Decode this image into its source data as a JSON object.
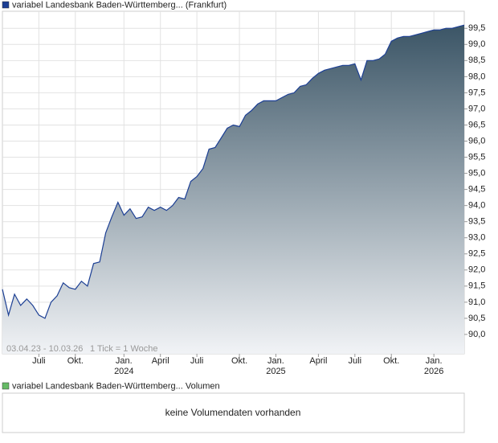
{
  "chart_data": {
    "type": "line",
    "title": "variabel Landesbank Baden-Württemberg... (Frankfurt)",
    "date_range": "03.04.23 - 10.03.26",
    "tick_note": "1 Tick = 1 Woche",
    "categories": [
      null,
      null,
      null,
      null,
      null,
      null,
      "Juli",
      null,
      null,
      null,
      null,
      null,
      "Okt.",
      null,
      null,
      null,
      null,
      null,
      null,
      null,
      "Jan.",
      null,
      null,
      null,
      null,
      null,
      "April",
      null,
      null,
      null,
      null,
      null,
      "Juli",
      null,
      null,
      null,
      null,
      null,
      null,
      "Okt.",
      null,
      null,
      null,
      null,
      null,
      "Jan.",
      null,
      null,
      null,
      null,
      null,
      null,
      "April",
      null,
      null,
      null,
      null,
      null,
      "Juli",
      null,
      null,
      null,
      null,
      null,
      "Okt.",
      null,
      null,
      null,
      null,
      null,
      null,
      "Jan.",
      null,
      null,
      null,
      null,
      null
    ],
    "category_years": [
      null,
      null,
      null,
      null,
      null,
      null,
      null,
      null,
      null,
      null,
      null,
      null,
      null,
      null,
      null,
      null,
      null,
      null,
      null,
      null,
      "2024",
      null,
      null,
      null,
      null,
      null,
      null,
      null,
      null,
      null,
      null,
      null,
      null,
      null,
      null,
      null,
      null,
      null,
      null,
      null,
      null,
      null,
      null,
      null,
      null,
      "2025",
      null,
      null,
      null,
      null,
      null,
      null,
      null,
      null,
      null,
      null,
      null,
      null,
      null,
      null,
      null,
      null,
      null,
      null,
      null,
      null,
      null,
      null,
      null,
      null,
      null,
      "2026",
      null,
      null,
      null,
      null,
      null
    ],
    "series": [
      {
        "name": "variabel Landesbank Baden-Württemberg... (Frankfurt)",
        "color": "#1c3f94",
        "values": [
          91.4,
          90.6,
          91.25,
          90.9,
          91.1,
          90.9,
          90.6,
          90.5,
          91.0,
          91.2,
          91.6,
          91.45,
          91.4,
          91.65,
          91.5,
          92.2,
          92.25,
          93.15,
          93.65,
          94.1,
          93.7,
          93.9,
          93.6,
          93.65,
          93.95,
          93.85,
          93.95,
          93.85,
          94.0,
          94.25,
          94.2,
          94.75,
          94.9,
          95.15,
          95.75,
          95.8,
          96.1,
          96.4,
          96.5,
          96.45,
          96.8,
          96.95,
          97.15,
          97.25,
          97.25,
          97.25,
          97.35,
          97.45,
          97.5,
          97.7,
          97.75,
          97.95,
          98.1,
          98.2,
          98.25,
          98.3,
          98.35,
          98.35,
          98.4,
          97.9,
          98.5,
          98.5,
          98.55,
          98.7,
          99.1,
          99.2,
          99.25,
          99.25,
          99.3,
          99.35,
          99.4,
          99.45,
          99.45,
          99.5,
          99.5,
          99.55,
          99.6
        ]
      }
    ],
    "ylim": [
      89.4,
      100.03
    ],
    "yticks": [
      {
        "value": 90.0,
        "label": "90,0"
      },
      {
        "value": 90.5,
        "label": "90,5"
      },
      {
        "value": 91.0,
        "label": "91,0"
      },
      {
        "value": 91.5,
        "label": "91,5"
      },
      {
        "value": 92.0,
        "label": "92,0"
      },
      {
        "value": 92.5,
        "label": "92,5"
      },
      {
        "value": 93.0,
        "label": "93,0"
      },
      {
        "value": 93.5,
        "label": "93,5"
      },
      {
        "value": 94.0,
        "label": "94,0"
      },
      {
        "value": 94.5,
        "label": "94,5"
      },
      {
        "value": 95.0,
        "label": "95,0"
      },
      {
        "value": 95.5,
        "label": "95,5"
      },
      {
        "value": 96.0,
        "label": "96,0"
      },
      {
        "value": 96.5,
        "label": "96,5"
      },
      {
        "value": 97.0,
        "label": "97,0"
      },
      {
        "value": 97.5,
        "label": "97,5"
      },
      {
        "value": 98.0,
        "label": "98,0"
      },
      {
        "value": 98.5,
        "label": "98,5"
      },
      {
        "value": 99.0,
        "label": "99,0"
      },
      {
        "value": 99.5,
        "label": "99,5"
      }
    ],
    "grid": true,
    "volume": {
      "legend": "variabel Landesbank Baden-Württemberg... Volumen",
      "color": "#66bb66",
      "message": "keine Volumendaten vorhanden"
    }
  }
}
